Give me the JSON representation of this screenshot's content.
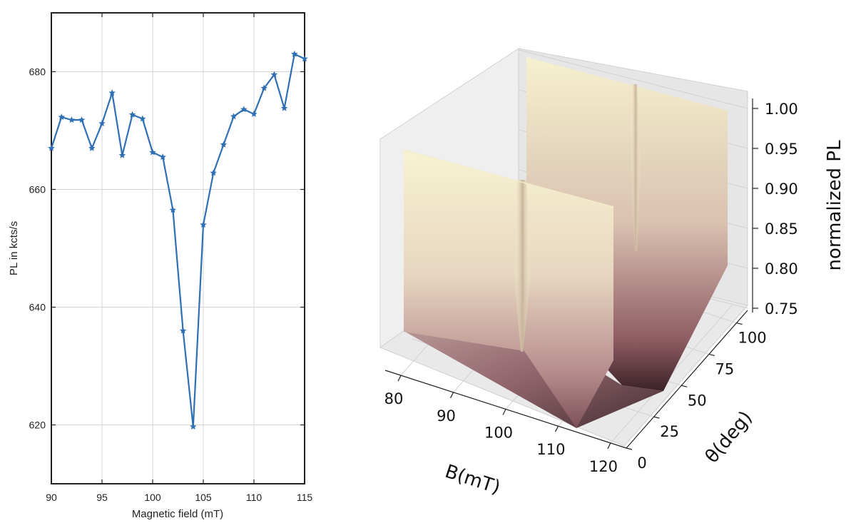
{
  "chart_data": [
    {
      "type": "line",
      "xlabel": "Magnetic field (mT)",
      "ylabel": "PL in kcts/s",
      "xlim": [
        90,
        115
      ],
      "ylim": [
        610,
        690
      ],
      "x_ticks": [
        90,
        95,
        100,
        105,
        110,
        115
      ],
      "y_ticks": [
        620,
        640,
        660,
        680
      ],
      "grid": true,
      "series": [
        {
          "color": "#2f6fb5",
          "marker": "star",
          "x": [
            90,
            91,
            92,
            93,
            94,
            95,
            96,
            97,
            98,
            99,
            100,
            101,
            102,
            103,
            104,
            105,
            106,
            107,
            108,
            109,
            110,
            111,
            112,
            113,
            114,
            115
          ],
          "y": [
            667,
            672.3,
            671.8,
            671.8,
            667,
            671.2,
            676.4,
            665.8,
            672.7,
            672,
            666.3,
            665.5,
            656.5,
            636,
            619.7,
            654,
            662.8,
            667.6,
            672.4,
            673.6,
            672.8,
            677.2,
            679.5,
            673.8,
            683,
            682.2
          ]
        }
      ]
    },
    {
      "type": "surface3d",
      "xlabel": "B(mT)",
      "ylabel": "θ(deg)",
      "zlabel": "normalized PL",
      "xlim": [
        77,
        123
      ],
      "ylim": [
        0,
        110
      ],
      "zlim": [
        0.73,
        1.0
      ],
      "x_ticks": [
        80,
        90,
        100,
        110,
        120
      ],
      "y_ticks": [
        0,
        25,
        50,
        75,
        100
      ],
      "z_ticks": [
        "0.75",
        "0.80",
        "0.85",
        "0.90",
        "0.95",
        "1.00"
      ],
      "colormap": [
        "#2f1f22",
        "#6b3a45",
        "#a97f82",
        "#d8c2b4",
        "#f7f3d2"
      ]
    }
  ]
}
